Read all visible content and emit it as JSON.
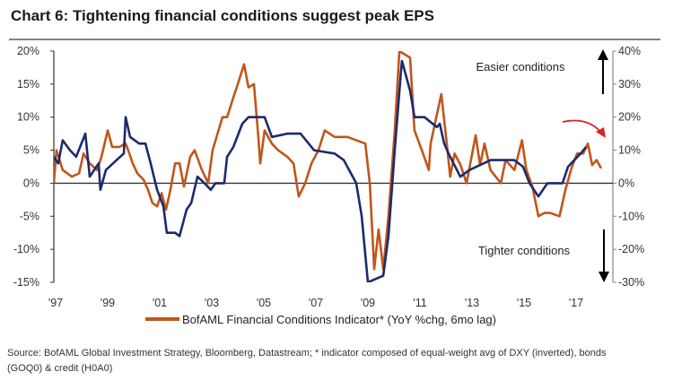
{
  "title": "Chart 6: Tightening financial conditions suggest peak EPS",
  "source_line1": "Source: BofAML Global Investment Strategy, Bloomberg, Datastream; * indicator composed of equal-weight avg of DXY (inverted), bonds",
  "source_line2": "(GOQ0) & credit (H0A0)",
  "colors": {
    "orange": "#c0561b",
    "blue": "#1c2a6e",
    "red_arrow": "#e02020",
    "title_rule": "#4a5a78"
  },
  "chart_data": {
    "type": "line",
    "grid": false,
    "legend_position": "bottom",
    "legend": [
      "BofAML Financial Conditions Indicator* (YoY %chg, 6mo lag)"
    ],
    "annotations": {
      "top": "Easier conditions",
      "bottom": "Tighter conditions"
    },
    "x_ticks": [
      "'97",
      "'99",
      "'01",
      "'03",
      "'05",
      "'07",
      "'09",
      "'11",
      "'13",
      "'15",
      "'17"
    ],
    "x_range": [
      1997,
      2018.4
    ],
    "y_left": {
      "range": [
        -15,
        20
      ],
      "ticks": [
        "20%",
        "15%",
        "10%",
        "5%",
        "0%",
        "-5%",
        "-10%",
        "-15%"
      ]
    },
    "y_right": {
      "range": [
        -30,
        40
      ],
      "ticks": [
        "40%",
        "30%",
        "20%",
        "10%",
        "0%",
        "-10%",
        "-20%",
        "-30%"
      ]
    },
    "series": [
      {
        "axis": "left",
        "color": "#1c2a6e",
        "x": [
          1997.0,
          1997.17,
          1997.34,
          1997.62,
          1997.86,
          1998.21,
          1998.38,
          1998.72,
          1998.79,
          1999.0,
          1999.41,
          1999.69,
          1999.76,
          1999.93,
          2000.28,
          2000.52,
          2000.72,
          2000.97,
          2001.21,
          2001.34,
          2001.66,
          2001.83,
          2002.1,
          2002.28,
          2002.52,
          2002.79,
          2003.03,
          2003.21,
          2003.55,
          2003.66,
          2003.9,
          2004.24,
          2004.48,
          2005.1,
          2005.38,
          2005.97,
          2006.48,
          2007.0,
          2007.79,
          2008.14,
          2008.62,
          2008.83,
          2009.07,
          2009.66,
          2009.86,
          2010.1,
          2010.34,
          2010.38,
          2010.69,
          2010.86,
          2011.24,
          2011.72,
          2011.83,
          2012.0,
          2012.17,
          2012.62,
          2012.97,
          2013.79,
          2014.69,
          2015.03,
          2015.28,
          2015.62,
          2015.97,
          2016.55,
          2016.76,
          2017.24,
          2017.45
        ],
        "y": [
          4,
          3,
          6.5,
          5,
          4,
          7.5,
          1,
          3,
          -1,
          2,
          3.5,
          4.5,
          10,
          7,
          6,
          6,
          3,
          -1,
          -3.5,
          -7.5,
          -7.5,
          -8,
          -4,
          -3,
          1,
          0,
          -1,
          0,
          0,
          4,
          5.5,
          9,
          10,
          10,
          7,
          7.5,
          7.5,
          5,
          4.5,
          3.5,
          0,
          -5,
          -15,
          -14,
          -8,
          5,
          17,
          18.5,
          14,
          10,
          10,
          8.5,
          9,
          6,
          4.5,
          1,
          2,
          3.5,
          3.5,
          2.5,
          0,
          -2,
          0,
          0,
          2.5,
          4.5,
          5.5
        ]
      },
      {
        "name": "BofAML Financial Conditions Indicator* (YoY %chg, 6mo lag)",
        "axis": "right",
        "color": "#c0561b",
        "x": [
          1997.0,
          1997.1,
          1997.34,
          1997.69,
          1997.97,
          1998.14,
          1998.38,
          1998.66,
          1998.83,
          1999.07,
          1999.24,
          1999.52,
          1999.76,
          1999.86,
          2000.03,
          2000.21,
          2000.45,
          2000.62,
          2000.79,
          2000.97,
          2001.14,
          2001.31,
          2001.48,
          2001.66,
          2001.83,
          2002.0,
          2002.24,
          2002.41,
          2002.69,
          2002.93,
          2003.1,
          2003.48,
          2003.66,
          2003.9,
          2004.07,
          2004.31,
          2004.48,
          2004.69,
          2004.86,
          2004.93,
          2005.1,
          2005.38,
          2005.62,
          2005.97,
          2006.21,
          2006.41,
          2006.66,
          2006.9,
          2007.17,
          2007.41,
          2007.79,
          2008.28,
          2008.97,
          2009.14,
          2009.31,
          2009.48,
          2009.66,
          2009.86,
          2010.1,
          2010.28,
          2010.69,
          2010.86,
          2011.14,
          2011.41,
          2011.48,
          2011.89,
          2012.06,
          2012.23,
          2012.4,
          2012.63,
          2012.86,
          2013.21,
          2013.38,
          2013.55,
          2013.78,
          2014.18,
          2014.36,
          2014.7,
          2014.99,
          2015.16,
          2015.39,
          2015.62,
          2015.85,
          2016.08,
          2016.43,
          2016.66,
          2016.89,
          2017.11,
          2017.34,
          2017.52,
          2017.69,
          2017.86,
          2018.03
        ],
        "y": [
          0,
          10,
          4,
          2,
          3,
          9,
          6,
          4,
          8,
          16,
          11,
          11,
          12,
          10,
          6,
          3,
          1,
          -2,
          -6,
          -7,
          -3,
          -8,
          -2,
          6,
          6,
          -1,
          8,
          10,
          4,
          0,
          10,
          20,
          20,
          26,
          30,
          36,
          29,
          30,
          14,
          6,
          16,
          12,
          10,
          8,
          6,
          -4,
          0,
          6,
          10,
          16,
          14,
          14,
          12,
          0,
          -26,
          -14,
          -26,
          -10,
          16,
          40,
          38,
          16,
          10,
          4,
          12,
          27,
          15,
          2,
          9,
          5.5,
          0,
          14.5,
          5.5,
          12,
          4,
          0,
          7,
          4,
          13,
          4,
          -1,
          -10,
          -9,
          -9,
          -10,
          -2,
          4.5,
          9,
          9,
          12,
          5.5,
          7,
          4.5
        ]
      }
    ]
  }
}
